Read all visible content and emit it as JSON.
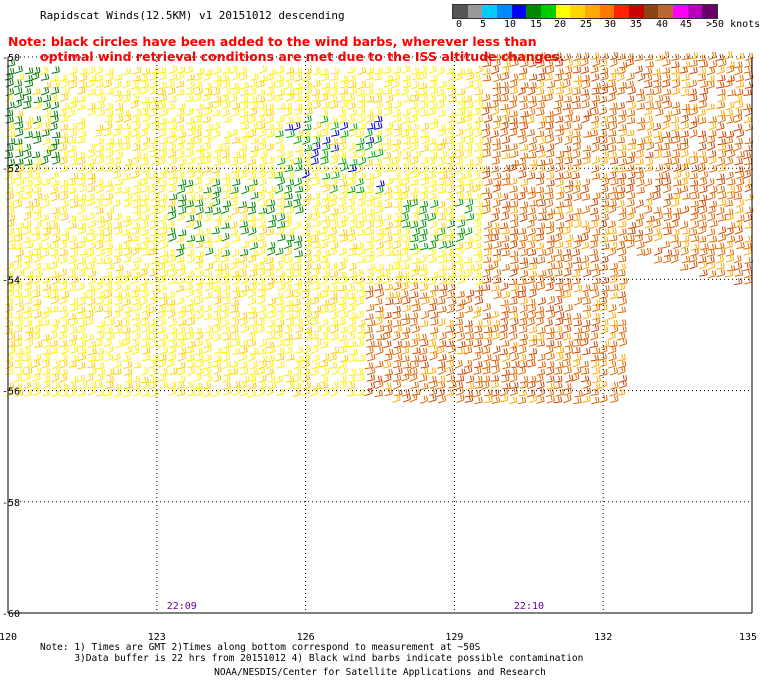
{
  "title": "Rapidscat Winds(12.5KM) v1 20151012 descending",
  "colorbar": {
    "colors": [
      "#555555",
      "#999999",
      "#00ccff",
      "#0088ff",
      "#0000ff",
      "#008800",
      "#00cc00",
      "#ffff00",
      "#ffd700",
      "#ffaa00",
      "#ff7700",
      "#ff2200",
      "#cc0000",
      "#8b4513",
      "#bb6633",
      "#ff00ff",
      "#bb00bb",
      "#660066"
    ],
    "labels": [
      "0",
      "5",
      "10",
      "15",
      "20",
      "25",
      "30",
      "35",
      "40",
      "45",
      ">50 knots"
    ]
  },
  "note": {
    "line1": "Note: black circles have been added to the wind barbs, wherever less than",
    "line2": "optimal wind retrieval conditions are met due to the ISS altitude changes."
  },
  "map": {
    "lon_ticks": [
      "120",
      "123",
      "126",
      "129",
      "132",
      "135"
    ],
    "lat_ticks": [
      "-50",
      "-52",
      "-54",
      "-56",
      "-58",
      "-60"
    ],
    "time_labels": [
      {
        "text": "22:09",
        "lon": 123.2
      },
      {
        "text": "22:10",
        "lon": 130.2
      }
    ],
    "lon_range": [
      120,
      135
    ],
    "lat_range": [
      -60,
      -50
    ]
  },
  "footer": {
    "line1": "Note: 1) Times are GMT 2)Times along bottom correspond to measurement at ~50S",
    "line2": "      3)Data buffer is 22 hrs from 20151012 4) Black wind barbs indicate possible contamination",
    "credit": "NOAA/NESDIS/Center for Satellite Applications and Research"
  }
}
